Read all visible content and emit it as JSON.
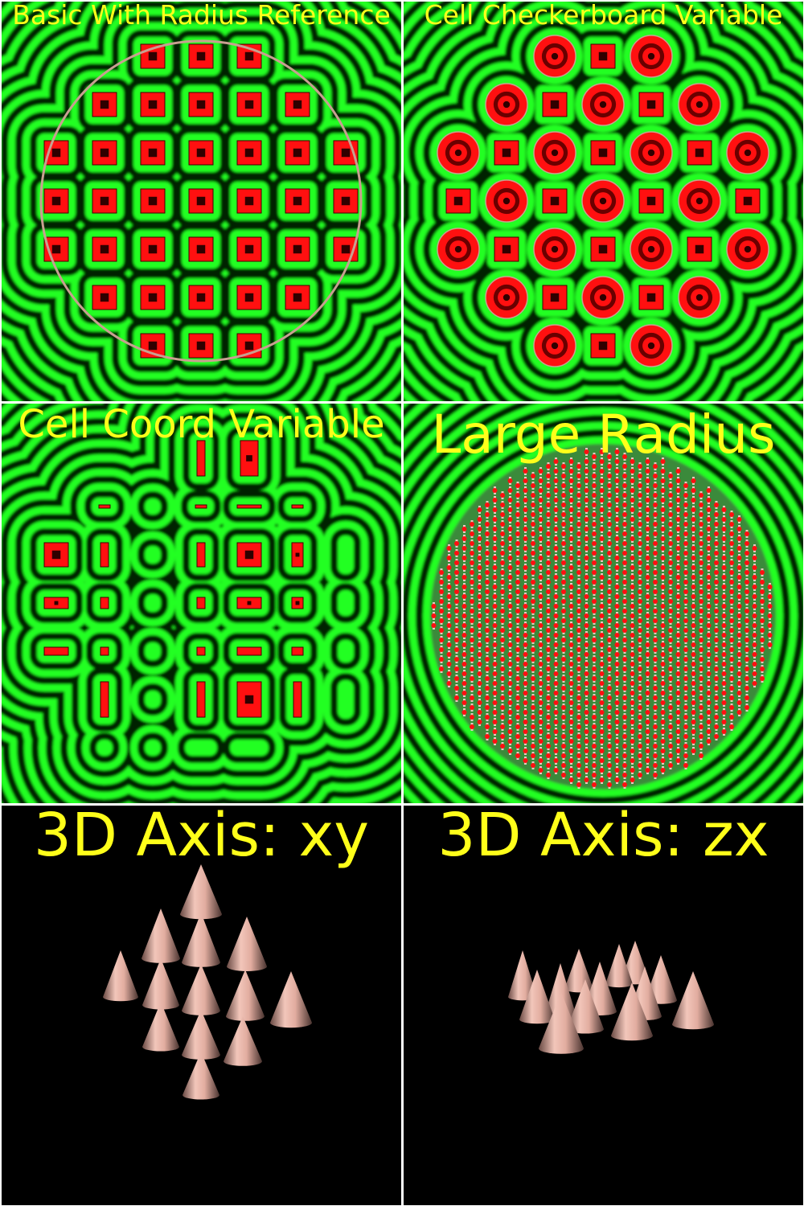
{
  "panels": [
    {
      "title": "Basic With Radius Reference"
    },
    {
      "title": "Cell Checkerboard Variable"
    },
    {
      "title": "Cell Coord Variable"
    },
    {
      "title": "Large Radius"
    },
    {
      "title": "3D Axis: xy"
    },
    {
      "title": "3D Axis: zx"
    }
  ],
  "colors": {
    "title_text": "#ffff1a",
    "band_bright": "#22ff22",
    "band_dark": "#062206",
    "cell_red": "#ff1010",
    "cone": "#e8b4a8",
    "background_3d": "#000000",
    "reference_circle": "#c8a090"
  }
}
